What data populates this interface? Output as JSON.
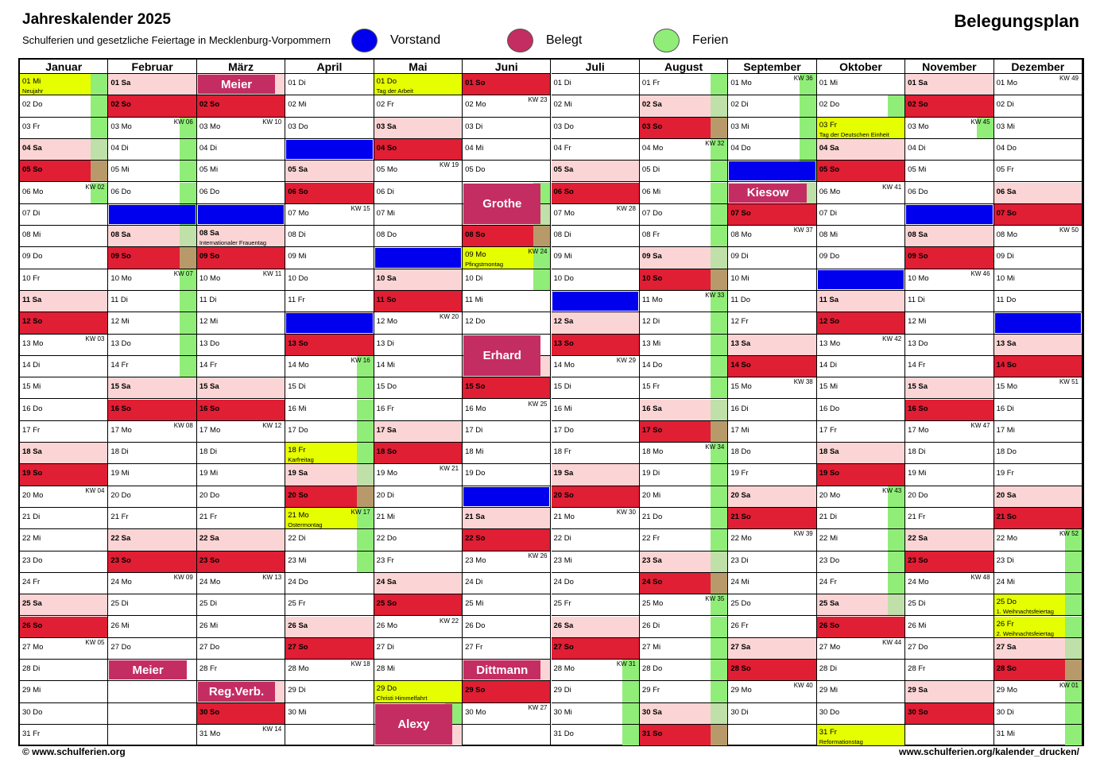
{
  "header": {
    "title": "Jahreskalender 2025",
    "subtitle": "Schulferien und gesetzliche Feiertage in Mecklenburg-Vorpommern",
    "right_title": "Belegungsplan"
  },
  "legend": [
    {
      "label": "Vorstand",
      "color": "#0000ee"
    },
    {
      "label": "Belegt",
      "color": "#c42d62"
    },
    {
      "label": "Ferien",
      "color": "#90ee78"
    }
  ],
  "footer": {
    "left": "© www.schulferien.org",
    "right": "www.schulferien.org/kalender_drucken/"
  },
  "colors": {
    "saturday": "#fbd5d5",
    "sunday": "#e01e34",
    "holiday": "#e6ff00",
    "ferien": "#90ee78",
    "ferien_sat": "#bfe0a8",
    "ferien_sun": "#b89a6a",
    "vorstand": "#0000ee",
    "belegt": "#c42d62"
  },
  "months": [
    {
      "name": "Januar",
      "days": 31,
      "first_weekday": 3
    },
    {
      "name": "Februar",
      "days": 28,
      "first_weekday": 6
    },
    {
      "name": "März",
      "days": 31,
      "first_weekday": 6
    },
    {
      "name": "April",
      "days": 30,
      "first_weekday": 2
    },
    {
      "name": "Mai",
      "days": 31,
      "first_weekday": 4
    },
    {
      "name": "Juni",
      "days": 30,
      "first_weekday": 0
    },
    {
      "name": "Juli",
      "days": 31,
      "first_weekday": 2
    },
    {
      "name": "August",
      "days": 31,
      "first_weekday": 5
    },
    {
      "name": "September",
      "days": 30,
      "first_weekday": 1
    },
    {
      "name": "Oktober",
      "days": 31,
      "first_weekday": 3
    },
    {
      "name": "November",
      "days": 30,
      "first_weekday": 6
    },
    {
      "name": "Dezember",
      "days": 31,
      "first_weekday": 1
    }
  ],
  "weekday_abbr": [
    "So",
    "Mo",
    "Di",
    "Mi",
    "Do",
    "Fr",
    "Sa"
  ],
  "holidays": [
    {
      "month": 1,
      "day": 1,
      "label": "Neujahr"
    },
    {
      "month": 3,
      "day": 8,
      "label": "Internationaler Frauentag"
    },
    {
      "month": 4,
      "day": 18,
      "label": "Karfreitag"
    },
    {
      "month": 4,
      "day": 21,
      "label": "Ostermontag"
    },
    {
      "month": 5,
      "day": 1,
      "label": "Tag der Arbeit"
    },
    {
      "month": 5,
      "day": 29,
      "label": "Christi Himmelfahrt"
    },
    {
      "month": 6,
      "day": 9,
      "label": "Pfingstmontag"
    },
    {
      "month": 10,
      "day": 3,
      "label": "Tag der Deutschen Einheit"
    },
    {
      "month": 10,
      "day": 31,
      "label": "Reformationstag"
    },
    {
      "month": 12,
      "day": 25,
      "label": "1. Weihnachtsfeiertag"
    },
    {
      "month": 12,
      "day": 26,
      "label": "2. Weihnachtsfeiertag"
    }
  ],
  "ferien": [
    {
      "month": 1,
      "from": 1,
      "to": 6
    },
    {
      "month": 2,
      "from": 3,
      "to": 14
    },
    {
      "month": 4,
      "from": 14,
      "to": 23
    },
    {
      "month": 5,
      "from": 30,
      "to": 30
    },
    {
      "month": 6,
      "from": 6,
      "to": 10
    },
    {
      "month": 7,
      "from": 28,
      "to": 31
    },
    {
      "month": 8,
      "from": 1,
      "to": 31
    },
    {
      "month": 9,
      "from": 1,
      "to": 6
    },
    {
      "month": 10,
      "from": 2,
      "to": 2
    },
    {
      "month": 10,
      "from": 20,
      "to": 25
    },
    {
      "month": 11,
      "from": 3,
      "to": 3
    },
    {
      "month": 12,
      "from": 22,
      "to": 31
    }
  ],
  "vorstand": [
    {
      "month": 2,
      "day": 7
    },
    {
      "month": 3,
      "day": 7
    },
    {
      "month": 4,
      "day": 4
    },
    {
      "month": 4,
      "day": 12
    },
    {
      "month": 5,
      "day": 9
    },
    {
      "month": 6,
      "day": 20
    },
    {
      "month": 7,
      "day": 11
    },
    {
      "month": 9,
      "day": 5
    },
    {
      "month": 10,
      "day": 10
    },
    {
      "month": 11,
      "day": 7
    },
    {
      "month": 12,
      "day": 12
    }
  ],
  "bookings": [
    {
      "month": 3,
      "from": 1,
      "to": 1,
      "label": "Meier"
    },
    {
      "month": 6,
      "from": 6,
      "to": 7,
      "label": "Grothe"
    },
    {
      "month": 9,
      "from": 6,
      "to": 6,
      "label": "Kiesow"
    },
    {
      "month": 6,
      "from": 13,
      "to": 14,
      "label": "Erhard"
    },
    {
      "month": 2,
      "from": 28,
      "to": 28,
      "label": "Meier"
    },
    {
      "month": 6,
      "from": 28,
      "to": 28,
      "label": "Dittmann"
    },
    {
      "month": 3,
      "from": 29,
      "to": 29,
      "label": "Reg.Verb."
    },
    {
      "month": 5,
      "from": 30,
      "to": 31,
      "label": "Alexy"
    }
  ]
}
